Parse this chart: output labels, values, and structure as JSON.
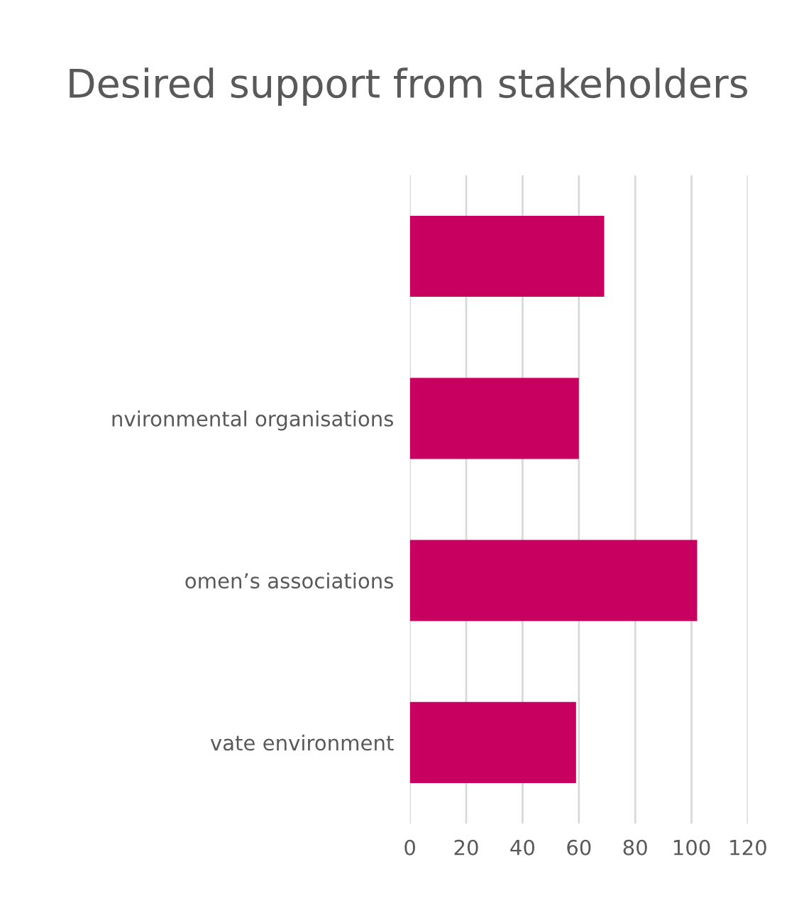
{
  "chart_data": {
    "type": "bar",
    "orientation": "horizontal",
    "title": "Desired support from stakeholders",
    "categories": [
      null,
      "nvironmental organisations",
      "omen’s associations",
      "vate environment"
    ],
    "values": [
      69,
      60,
      102,
      59
    ],
    "color": "#c8005f",
    "xlim": [
      0,
      120
    ],
    "xticks": [
      0,
      20,
      40,
      60,
      80,
      100,
      120
    ],
    "grid": "x",
    "legend": false
  }
}
